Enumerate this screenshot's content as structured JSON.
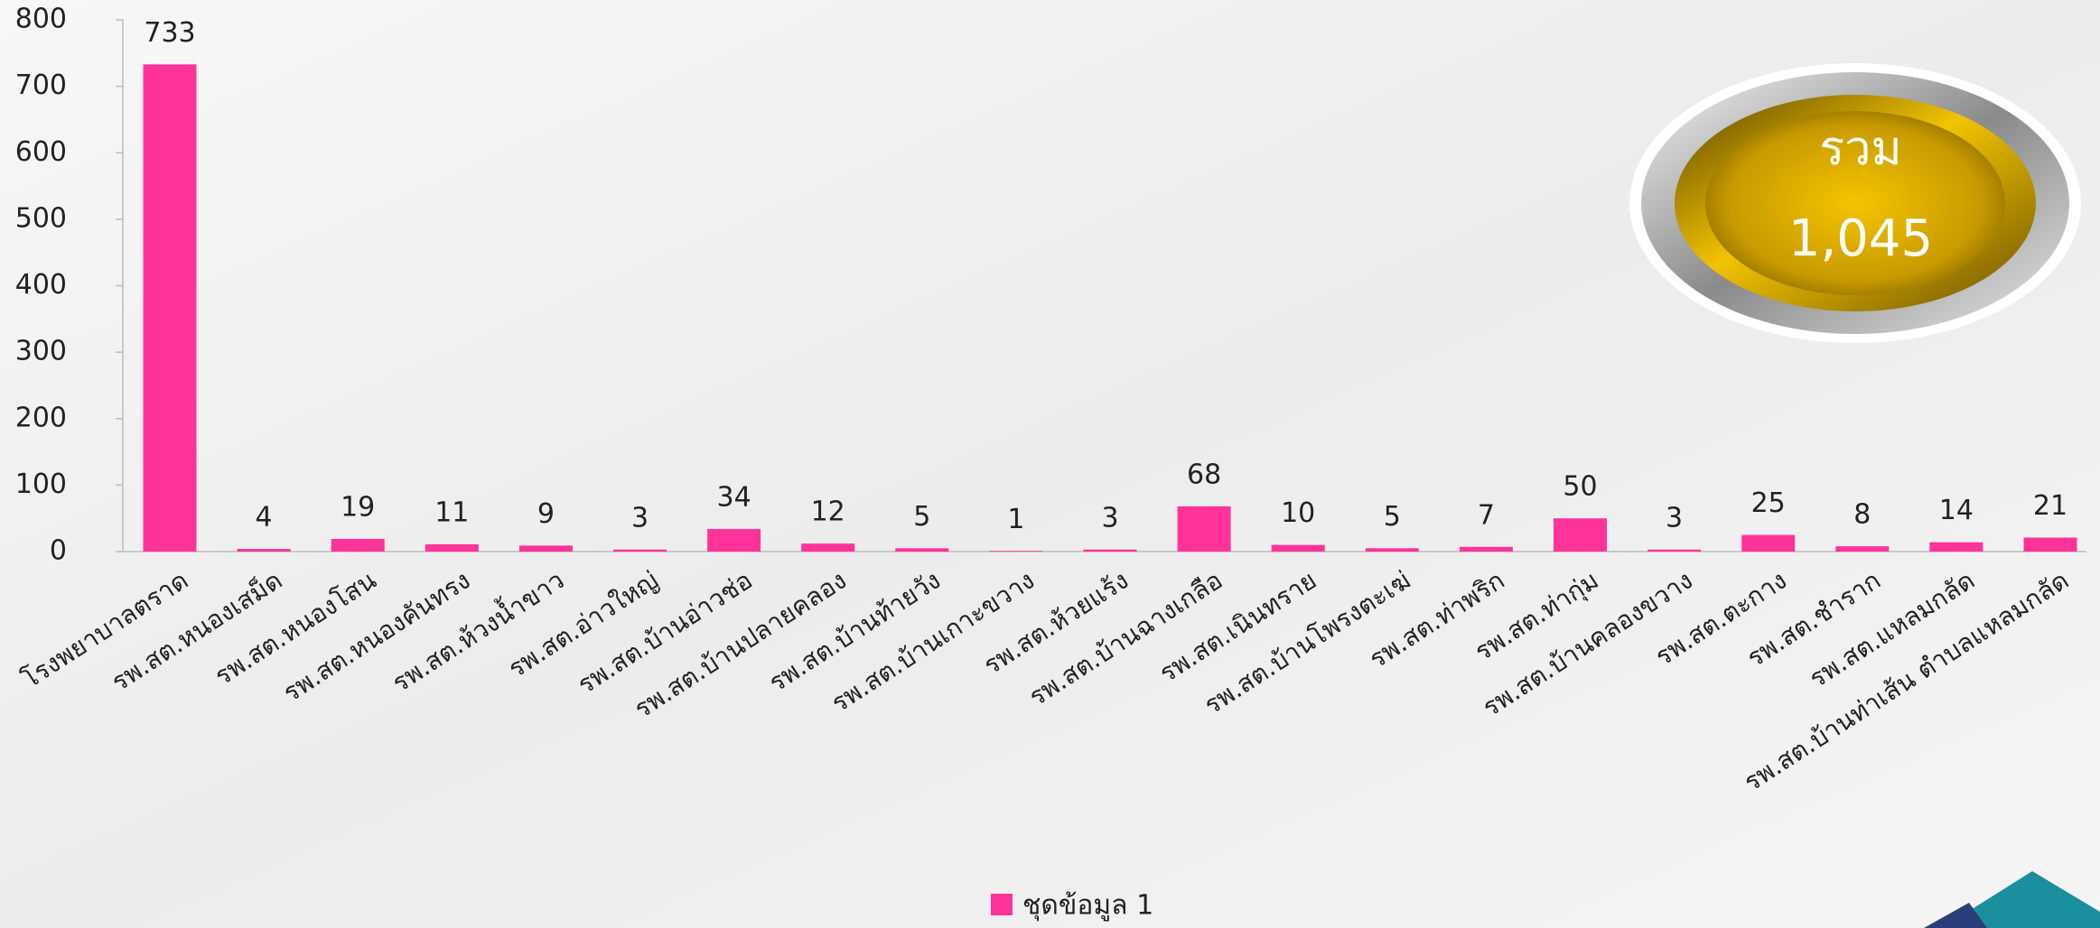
{
  "chart_data": {
    "type": "bar",
    "categories": [
      "โรงพยาบาลตราด",
      "รพ.สต.หนองเสม็ด",
      "รพ.สต.หนองโสน",
      "รพ.สต.หนองคันทรง",
      "รพ.สต.ห้วงน้ำขาว",
      "รพ.สต.อ่าวใหญ่",
      "รพ.สต.บ้านอ่าวช่อ",
      "รพ.สต.บ้านปลายคลอง",
      "รพ.สต.บ้านท้ายวัง",
      "รพ.สต.บ้านเกาะขวาง",
      "รพ.สต.ห้วยแร้ง",
      "รพ.สต.บ้านฉางเกลือ",
      "รพ.สต.เนินทราย",
      "รพ.สต.บ้านโพรงตะเฆ่",
      "รพ.สต.ท่าพริก",
      "รพ.สต.ท่ากุ่ม",
      "รพ.สต.บ้านคลองขวาง",
      "รพ.สต.ตะกาง",
      "รพ.สต.ชำราก",
      "รพ.สต.แหลมกลัด",
      "รพ.สต.บ้านท่าเส้น ตำบลแหลมกลัด"
    ],
    "series": [
      {
        "name": "ชุดข้อมูล 1",
        "color": "#ff3399",
        "values": [
          733,
          4,
          19,
          11,
          9,
          3,
          34,
          12,
          5,
          1,
          3,
          68,
          10,
          5,
          7,
          50,
          3,
          25,
          8,
          14,
          21
        ]
      }
    ],
    "ylim": [
      0,
      800
    ],
    "yticks": [
      0,
      100,
      200,
      300,
      400,
      500,
      600,
      700,
      800
    ],
    "legend": "bottom",
    "total_badge": {
      "label": "รวม",
      "value": "1,045"
    }
  }
}
